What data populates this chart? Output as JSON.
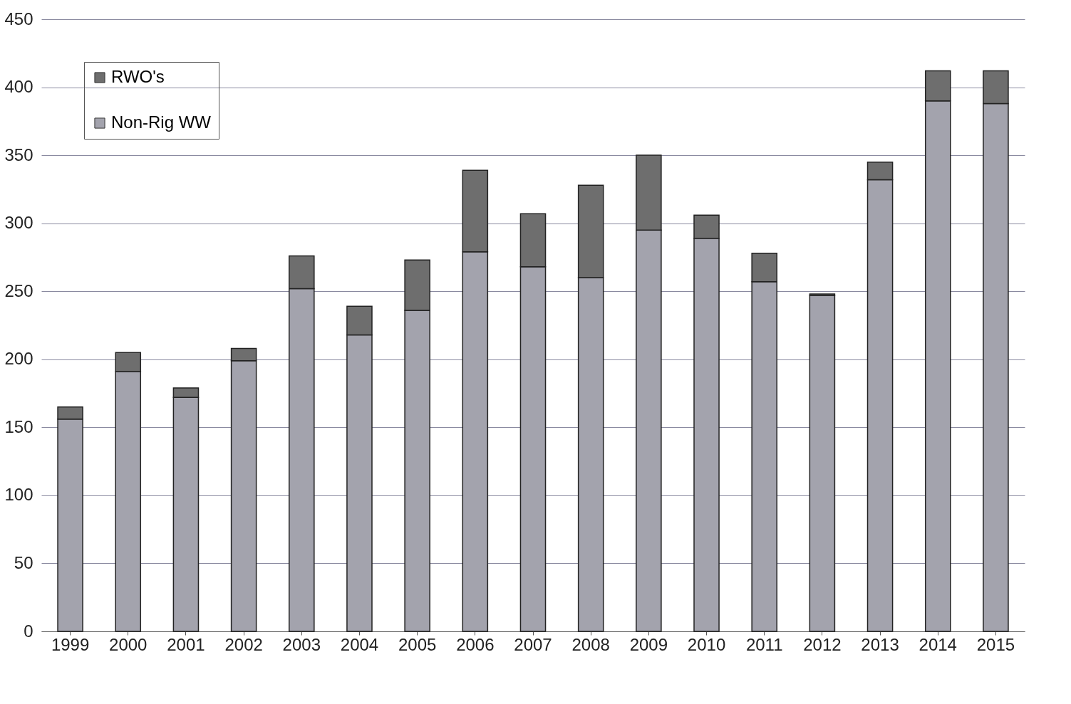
{
  "chart_data": {
    "type": "bar",
    "stacked": true,
    "categories": [
      "1999",
      "2000",
      "2001",
      "2002",
      "2003",
      "2004",
      "2005",
      "2006",
      "2007",
      "2008",
      "2009",
      "2010",
      "2011",
      "2012",
      "2013",
      "2014",
      "2015"
    ],
    "series": [
      {
        "name": "Non-Rig WW",
        "color": "#a3a3ad",
        "values": [
          156,
          191,
          172,
          199,
          252,
          218,
          236,
          279,
          268,
          260,
          295,
          289,
          257,
          247,
          332,
          390,
          388
        ]
      },
      {
        "name": "RWO's",
        "color": "#6e6e6e",
        "values": [
          9,
          14,
          7,
          9,
          24,
          21,
          37,
          60,
          39,
          68,
          55,
          17,
          21,
          1,
          13,
          22,
          24
        ]
      }
    ],
    "ylim": [
      0,
      450
    ],
    "yticks": [
      0,
      50,
      100,
      150,
      200,
      250,
      300,
      350,
      400,
      450
    ],
    "grid": "y",
    "legend": "top left"
  }
}
